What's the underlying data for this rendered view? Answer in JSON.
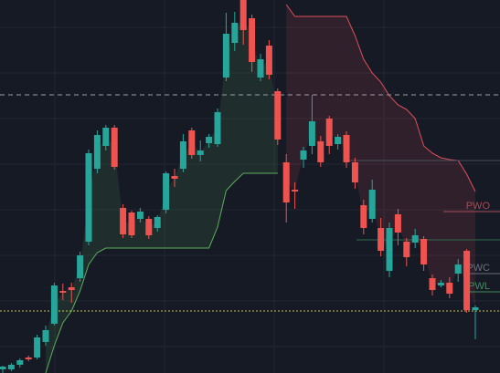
{
  "chart_data": {
    "type": "candlestick",
    "ylim": [
      0,
      409
    ],
    "up_color": "#26a69a",
    "down_color": "#ef5350",
    "open": [
      4,
      4,
      9,
      17,
      17,
      34,
      54,
      90,
      94,
      104,
      144,
      224,
      249,
      269,
      181,
      176,
      169,
      169,
      159,
      179,
      216,
      224,
      266,
      239,
      252,
      251,
      324,
      362,
      409,
      389,
      324,
      359,
      309,
      231,
      201,
      234,
      249,
      254,
      279,
      251,
      261,
      231,
      184,
      169,
      159,
      112,
      174,
      144,
      143,
      147,
      104,
      96,
      99,
      109,
      134,
      69
    ],
    "high": [
      8,
      11,
      16,
      19,
      42,
      52,
      99,
      98,
      99,
      133,
      245,
      266,
      272,
      272,
      185,
      178,
      181,
      172,
      173,
      221,
      224,
      262,
      269,
      255,
      262,
      290,
      395,
      396,
      409,
      393,
      350,
      365,
      312,
      240,
      209,
      248,
      305,
      260,
      282,
      262,
      265,
      236,
      190,
      212,
      170,
      165,
      180,
      148,
      158,
      150,
      108,
      102,
      105,
      125,
      136,
      74
    ],
    "low": [
      0,
      2,
      6,
      13,
      15,
      30,
      52,
      80,
      77,
      100,
      140,
      219,
      244,
      223,
      148,
      148,
      165,
      147,
      155,
      175,
      204,
      220,
      235,
      232,
      247,
      248,
      320,
      353,
      360,
      330,
      320,
      322,
      250,
      165,
      180,
      225,
      240,
      226,
      240,
      245,
      225,
      202,
      152,
      165,
      128,
      105,
      140,
      117,
      137,
      112,
      85,
      94,
      82,
      100,
      66,
      37
    ],
    "close": [
      7,
      9,
      14,
      15,
      39,
      47,
      96,
      88,
      91,
      129,
      241,
      261,
      269,
      226,
      152,
      151,
      177,
      151,
      171,
      219,
      213,
      254,
      239,
      244,
      259,
      286,
      372,
      384,
      376,
      341,
      344,
      327,
      256,
      187,
      199,
      244,
      276,
      231,
      249,
      259,
      231,
      209,
      159,
      201,
      134,
      159,
      154,
      127,
      151,
      119,
      91,
      99,
      87,
      119,
      69,
      72
    ],
    "trail_low": [
      null,
      null,
      null,
      null,
      null,
      0,
      30,
      55,
      68,
      90,
      119,
      132,
      137,
      137,
      137,
      137,
      137,
      137,
      137,
      137,
      137,
      137,
      137,
      137,
      137,
      160,
      200,
      210,
      219,
      219,
      219,
      219,
      219,
      null,
      null,
      null,
      null,
      null,
      null,
      null,
      null,
      null,
      null,
      null,
      null,
      null,
      null,
      null,
      null,
      null,
      null,
      null,
      null,
      null,
      null,
      null
    ],
    "trail_high": [
      null,
      null,
      null,
      null,
      null,
      null,
      null,
      null,
      null,
      null,
      null,
      null,
      null,
      null,
      null,
      null,
      null,
      null,
      null,
      null,
      null,
      null,
      null,
      null,
      null,
      null,
      null,
      null,
      null,
      null,
      null,
      null,
      null,
      404,
      391,
      391,
      391,
      391,
      391,
      391,
      391,
      370,
      344,
      329,
      319,
      304,
      294,
      289,
      279,
      249,
      241,
      236,
      234,
      233,
      218,
      199
    ],
    "trail_low_color": "#5cae5c",
    "trail_high_color": "#e0505a",
    "levels": [
      {
        "value": 305,
        "color": "#9aa0ab",
        "style": "dashed",
        "start": 0
      },
      {
        "value": 68,
        "color": "#c9c25a",
        "style": "dotted",
        "start": 0
      },
      {
        "value": 233,
        "color": "#4a4f5c",
        "style": "solid",
        "start": 380
      },
      {
        "value": 146,
        "color": "#2f6b4e",
        "style": "solid",
        "start": 390
      },
      {
        "label": "PWO",
        "value": 177,
        "color": "#a84a55",
        "style": "solid",
        "start": 485
      },
      {
        "label": "PWC",
        "value": 109,
        "color": "#6a6f7a",
        "style": "solid",
        "start": 509
      },
      {
        "label": "PWL",
        "value": 89,
        "color": "#3f8f5a",
        "style": "solid",
        "start": 509
      }
    ]
  }
}
